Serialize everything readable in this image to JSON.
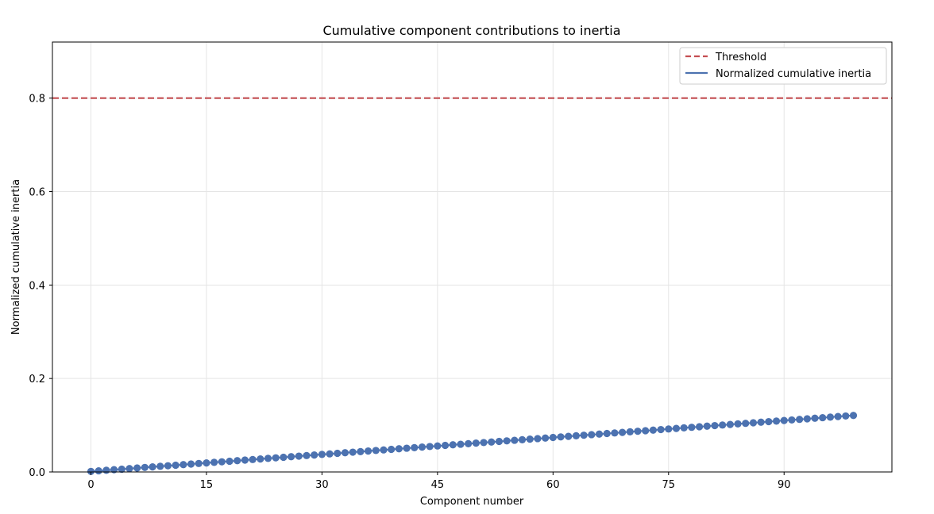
{
  "chart_data": {
    "type": "line",
    "title": "Cumulative component contributions to inertia",
    "xlabel": "Component number",
    "ylabel": "Normalized cumulative inertia",
    "xlim": [
      -5,
      104
    ],
    "ylim": [
      0,
      0.92
    ],
    "xticks": [
      0,
      15,
      30,
      45,
      60,
      75,
      90
    ],
    "yticks": [
      0.0,
      0.2,
      0.4,
      0.6,
      0.8
    ],
    "ytick_labels": [
      "0.0",
      "0.2",
      "0.4",
      "0.6",
      "0.8"
    ],
    "grid": true,
    "legend_position": "top-right",
    "threshold": {
      "name": "Threshold",
      "value": 0.8,
      "color": "#c44e52",
      "style": "dashed"
    },
    "series": [
      {
        "name": "Normalized cumulative inertia",
        "color": "#4c72b0",
        "marker": "circle",
        "x_start": 0,
        "x_end": 99,
        "y_start": 0.0012,
        "y_end": 0.121
      }
    ]
  }
}
